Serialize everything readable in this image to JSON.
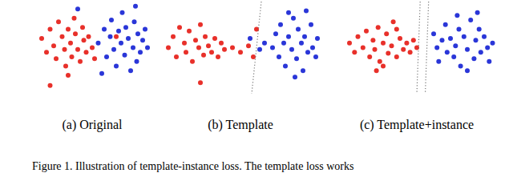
{
  "chart_data": [
    {
      "type": "scatter",
      "title": "(a) Original",
      "xlim": [
        0,
        100
      ],
      "ylim": [
        0,
        100
      ],
      "tick_labels": false,
      "grid": false,
      "series": [
        {
          "color": "#e8302a",
          "marker": "circle",
          "x": [
            8,
            12,
            15,
            18,
            20,
            22,
            25,
            27,
            28,
            30,
            32,
            33,
            35,
            36,
            38,
            40,
            42,
            43,
            45,
            47,
            50,
            52,
            30,
            15,
            70
          ],
          "values": [
            60,
            45,
            70,
            52,
            38,
            78,
            62,
            48,
            30,
            70,
            55,
            40,
            82,
            65,
            48,
            35,
            72,
            58,
            45,
            62,
            50,
            38,
            20,
            9,
            62
          ]
        },
        {
          "color": "#2a36d8",
          "marker": "circle",
          "x": [
            55,
            60,
            62,
            65,
            66,
            68,
            70,
            72,
            74,
            75,
            77,
            78,
            80,
            82,
            84,
            85,
            87,
            88,
            90,
            92,
            94,
            96,
            38,
            58,
            86
          ],
          "values": [
            55,
            70,
            40,
            62,
            80,
            48,
            30,
            68,
            55,
            88,
            42,
            72,
            60,
            25,
            50,
            78,
            35,
            65,
            45,
            58,
            70,
            50,
            92,
            22,
            95
          ]
        }
      ]
    },
    {
      "type": "scatter",
      "title": "(b) Template",
      "xlim": [
        0,
        100
      ],
      "ylim": [
        0,
        100
      ],
      "tick_labels": false,
      "grid": false,
      "series": [
        {
          "color": "#e8302a",
          "marker": "circle",
          "x": [
            5,
            8,
            10,
            12,
            15,
            16,
            18,
            20,
            22,
            24,
            25,
            27,
            28,
            30,
            32,
            34,
            36,
            38,
            40,
            45,
            50,
            55,
            58,
            60,
            25
          ],
          "values": [
            50,
            62,
            40,
            72,
            55,
            45,
            68,
            35,
            58,
            50,
            75,
            42,
            62,
            52,
            45,
            60,
            40,
            55,
            48,
            50,
            45,
            52,
            40,
            70,
            12
          ]
        },
        {
          "color": "#2a36d8",
          "marker": "circle",
          "x": [
            56,
            62,
            65,
            70,
            72,
            74,
            75,
            77,
            78,
            80,
            82,
            83,
            85,
            86,
            88,
            89,
            90,
            92,
            94,
            95,
            97,
            98,
            80,
            84,
            91
          ],
          "values": [
            60,
            48,
            55,
            50,
            65,
            40,
            75,
            55,
            30,
            62,
            48,
            82,
            38,
            70,
            55,
            25,
            62,
            45,
            75,
            50,
            40,
            60,
            88,
            18,
            90
          ]
        },
        {
          "type": "line",
          "color": "#777777",
          "line_style": "dotted",
          "x": [
            63,
            57
          ],
          "values": [
            100,
            0
          ]
        }
      ]
    },
    {
      "type": "scatter",
      "title": "(c) Template+instance",
      "xlim": [
        0,
        100
      ],
      "ylim": [
        0,
        100
      ],
      "tick_labels": false,
      "grid": false,
      "series": [
        {
          "color": "#e8302a",
          "marker": "circle",
          "x": [
            10,
            13,
            15,
            18,
            20,
            22,
            24,
            25,
            27,
            28,
            30,
            32,
            33,
            35,
            36,
            38,
            40,
            42,
            44,
            46,
            48,
            50,
            30,
            26,
            38
          ],
          "values": [
            55,
            45,
            62,
            50,
            68,
            40,
            58,
            48,
            72,
            35,
            55,
            65,
            44,
            52,
            78,
            40,
            60,
            48,
            55,
            45,
            58,
            50,
            30,
            25,
            70
          ]
        },
        {
          "color": "#2a36d8",
          "marker": "circle",
          "x": [
            60,
            62,
            63,
            65,
            67,
            68,
            70,
            72,
            73,
            75,
            76,
            78,
            80,
            82,
            84,
            85,
            87,
            88,
            90,
            92,
            93,
            95,
            80,
            74,
            86
          ],
          "values": [
            65,
            50,
            35,
            58,
            75,
            45,
            60,
            40,
            52,
            70,
            30,
            62,
            48,
            80,
            38,
            58,
            70,
            45,
            62,
            50,
            35,
            55,
            25,
            85,
            88
          ]
        },
        {
          "type": "line",
          "color": "#777777",
          "line_style": "dotted",
          "x": [
            52,
            50
          ],
          "values": [
            100,
            0
          ]
        },
        {
          "type": "line",
          "color": "#777777",
          "line_style": "dotted",
          "x": [
            57,
            55
          ],
          "values": [
            100,
            0
          ]
        }
      ]
    }
  ],
  "caption": "Figure 1. Illustration of template-instance loss. The template loss works"
}
